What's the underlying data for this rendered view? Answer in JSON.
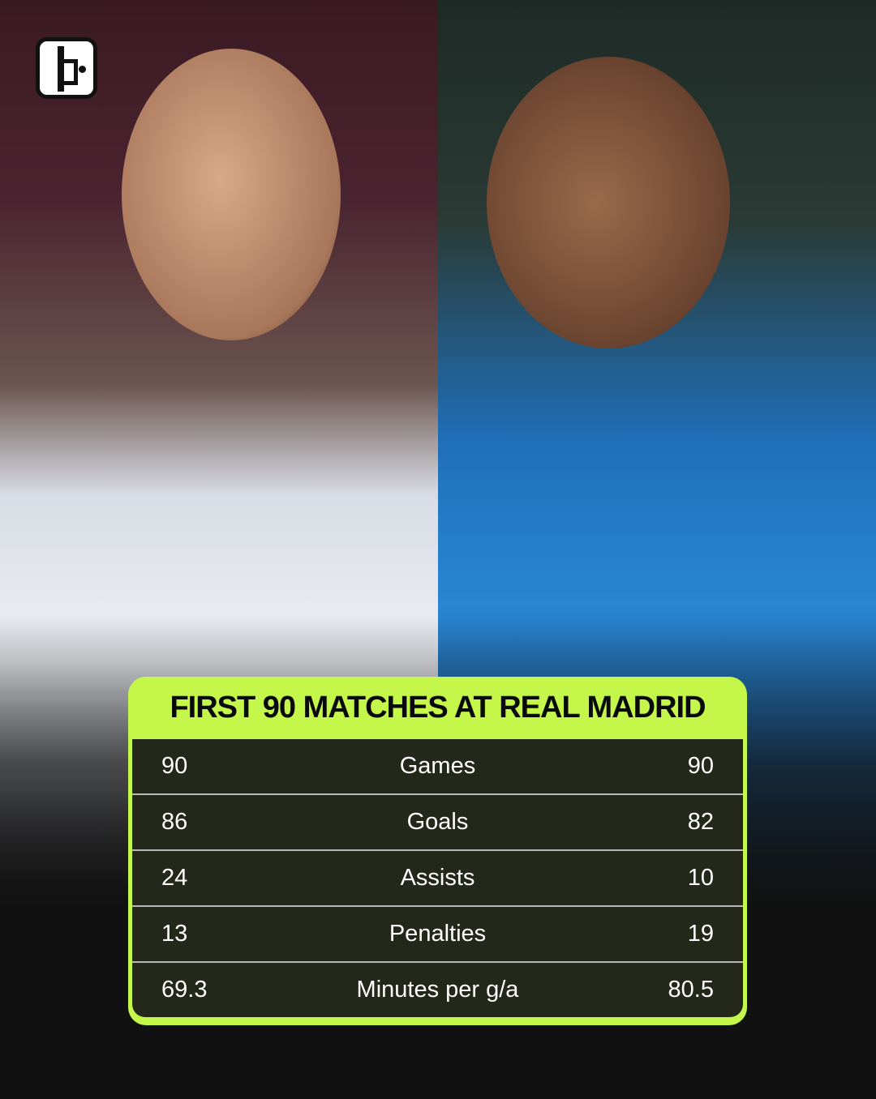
{
  "brand": {
    "logo": "logo-mark"
  },
  "title": "FIRST 90 MATCHES AT REAL MADRID",
  "colors": {
    "accent": "#c5f74a",
    "table_bg": "#161616"
  },
  "stats": [
    {
      "left": "90",
      "label": "Games",
      "right": "90"
    },
    {
      "left": "86",
      "label": "Goals",
      "right": "82"
    },
    {
      "left": "24",
      "label": "Assists",
      "right": "10"
    },
    {
      "left": "13",
      "label": "Penalties",
      "right": "19"
    },
    {
      "left": "69.3",
      "label": "Minutes per g/a",
      "right": "80.5"
    }
  ]
}
